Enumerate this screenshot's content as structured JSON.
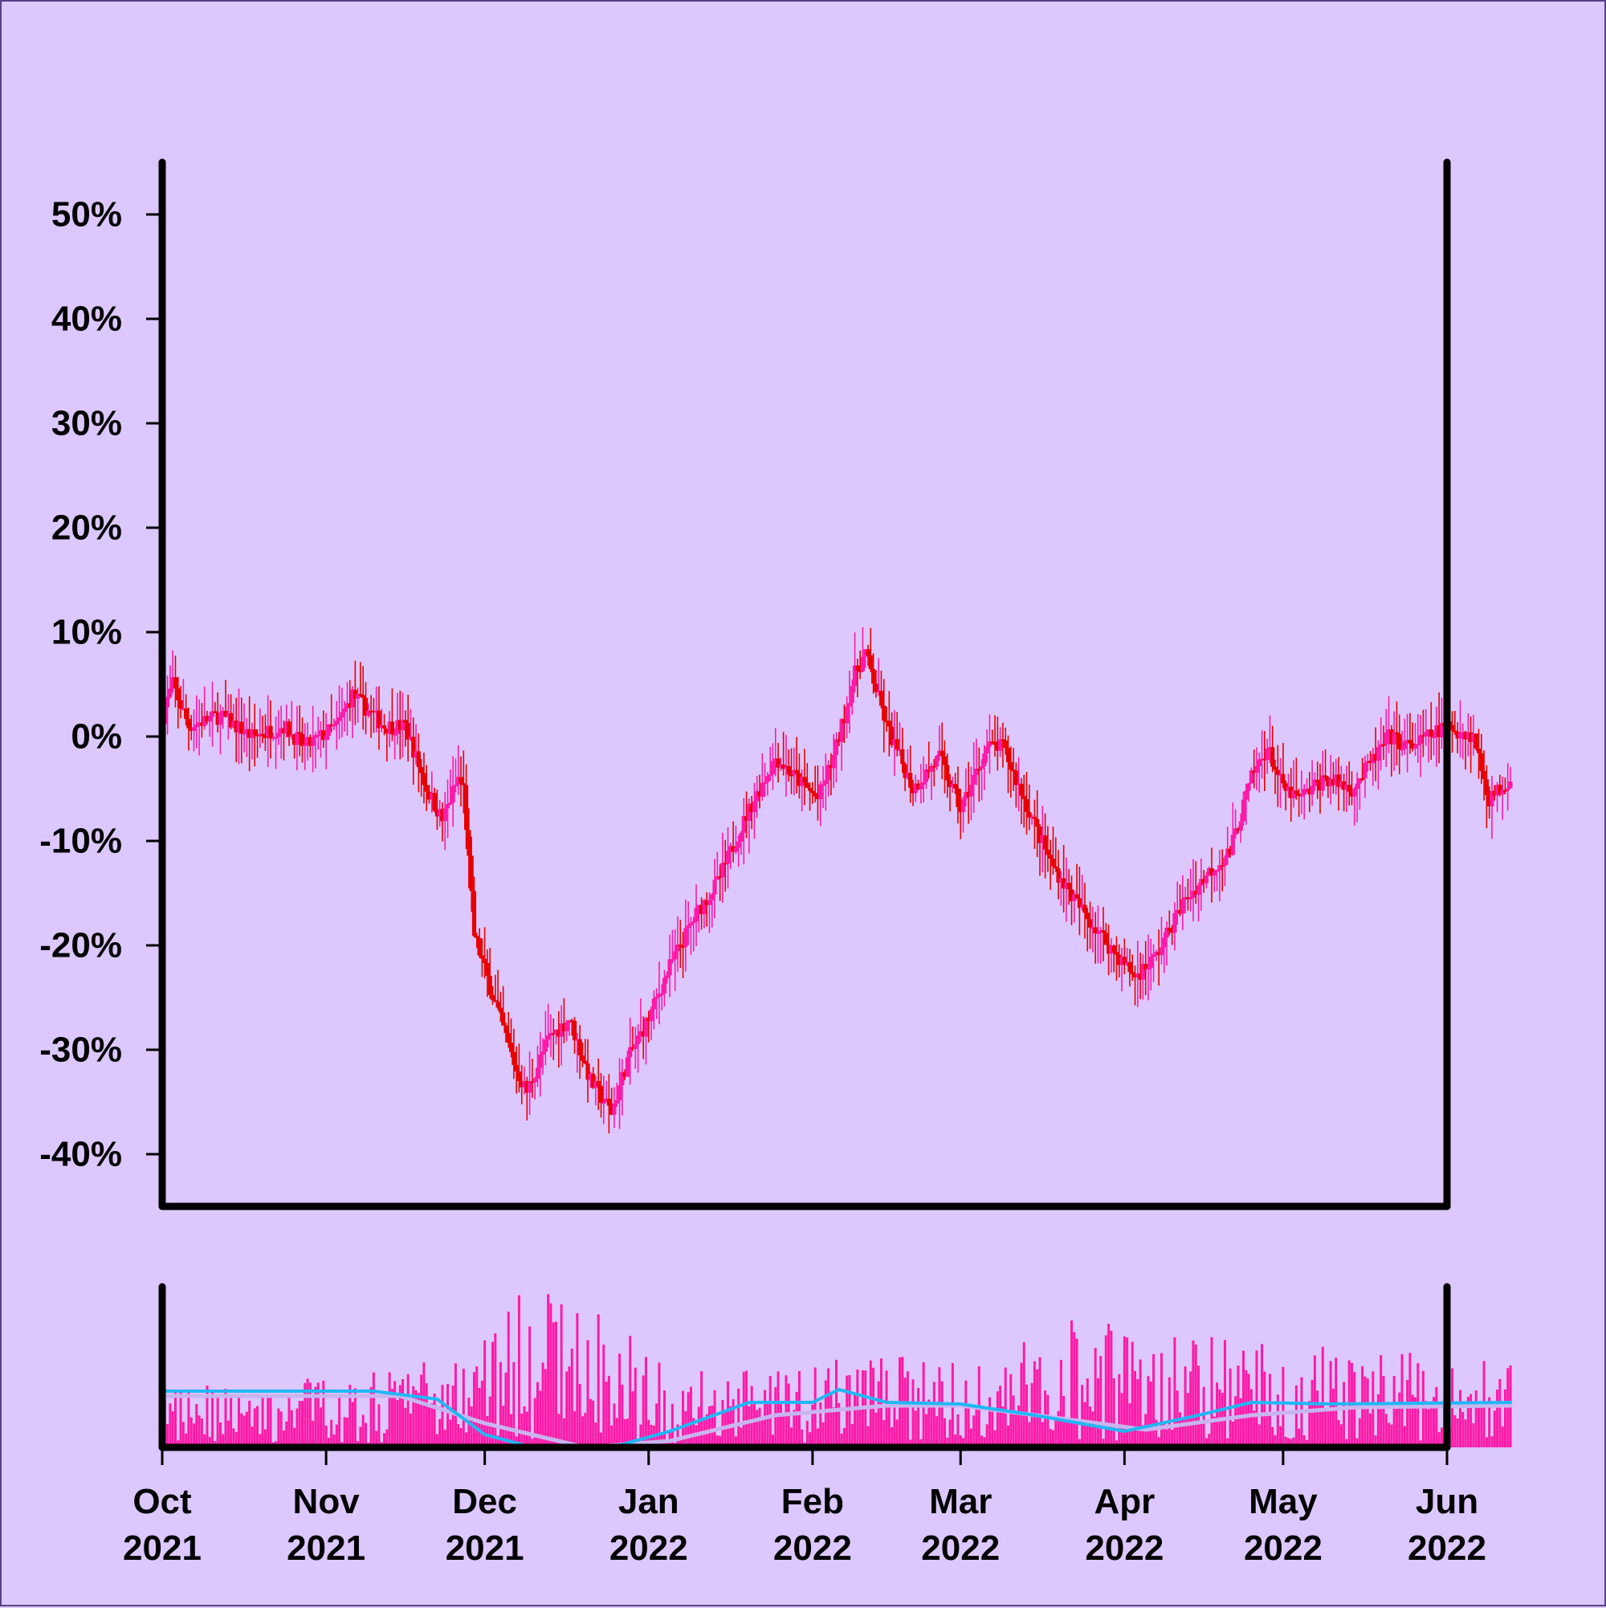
{
  "chart_data": {
    "type": "candlestick",
    "colors": {
      "background": "#dcc8ff",
      "up": "#ff1aa8",
      "down": "#e60000",
      "volume": "#ff1aa8",
      "ma_fast": "#1fb8f5",
      "ma_slow": "#c8b4ee",
      "axis": "#000000"
    },
    "price_axis": {
      "ylim": [
        -45,
        55
      ],
      "ticks": [
        -40,
        -30,
        -20,
        -10,
        0,
        10,
        20,
        30,
        40,
        50
      ],
      "tick_labels": [
        "-40%",
        "-30%",
        "-20%",
        "-10%",
        "0%",
        "10%",
        "20%",
        "30%",
        "40%",
        "50%"
      ]
    },
    "x_axis": {
      "start": "2021-10-01",
      "end": "2022-06-01",
      "ticks": [
        "2021-10-01",
        "2021-11-01",
        "2021-12-01",
        "2022-01-01",
        "2022-02-01",
        "2022-03-01",
        "2022-04-01",
        "2022-05-01",
        "2022-06-01"
      ],
      "tick_labels": [
        [
          "Oct",
          "2021"
        ],
        [
          "Nov",
          "2021"
        ],
        [
          "Dec",
          "2021"
        ],
        [
          "Jan",
          "2022"
        ],
        [
          "Feb",
          "2022"
        ],
        [
          "Mar",
          "2022"
        ],
        [
          "Apr",
          "2022"
        ],
        [
          "May",
          "2022"
        ],
        [
          "Jun",
          "2022"
        ]
      ]
    },
    "price_path": [
      [
        "2021-10-01",
        2
      ],
      [
        "2021-10-03",
        5
      ],
      [
        "2021-10-06",
        1
      ],
      [
        "2021-10-12",
        2
      ],
      [
        "2021-10-18",
        0
      ],
      [
        "2021-10-24",
        1
      ],
      [
        "2021-10-28",
        -1
      ],
      [
        "2021-11-03",
        1
      ],
      [
        "2021-11-06",
        4
      ],
      [
        "2021-11-12",
        1
      ],
      [
        "2021-11-16",
        1
      ],
      [
        "2021-11-20",
        -5
      ],
      [
        "2021-11-23",
        -8
      ],
      [
        "2021-11-26",
        -4
      ],
      [
        "2021-11-27",
        -5
      ],
      [
        "2021-11-29",
        -19
      ],
      [
        "2021-12-02",
        -24
      ],
      [
        "2021-12-07",
        -32
      ],
      [
        "2021-12-09",
        -34
      ],
      [
        "2021-12-13",
        -29
      ],
      [
        "2021-12-17",
        -27
      ],
      [
        "2021-12-21",
        -33
      ],
      [
        "2021-12-25",
        -36
      ],
      [
        "2021-12-28",
        -31
      ],
      [
        "2022-01-01",
        -27
      ],
      [
        "2022-01-05",
        -22
      ],
      [
        "2022-01-10",
        -17
      ],
      [
        "2022-01-14",
        -14
      ],
      [
        "2022-01-20",
        -7
      ],
      [
        "2022-01-25",
        -2
      ],
      [
        "2022-01-29",
        -4
      ],
      [
        "2022-02-02",
        -6
      ],
      [
        "2022-02-05",
        -2
      ],
      [
        "2022-02-09",
        6
      ],
      [
        "2022-02-11",
        8
      ],
      [
        "2022-02-15",
        1
      ],
      [
        "2022-02-20",
        -5
      ],
      [
        "2022-02-25",
        -2
      ],
      [
        "2022-03-01",
        -7
      ],
      [
        "2022-03-06",
        -1
      ],
      [
        "2022-03-09",
        -1
      ],
      [
        "2022-03-13",
        -6
      ],
      [
        "2022-03-18",
        -12
      ],
      [
        "2022-03-23",
        -16
      ],
      [
        "2022-03-29",
        -20
      ],
      [
        "2022-04-03",
        -23
      ],
      [
        "2022-04-07",
        -21
      ],
      [
        "2022-04-12",
        -16
      ],
      [
        "2022-04-17",
        -13
      ],
      [
        "2022-04-21",
        -11
      ],
      [
        "2022-04-25",
        -4
      ],
      [
        "2022-04-28",
        -1
      ],
      [
        "2022-05-01",
        -5
      ],
      [
        "2022-05-04",
        -6
      ],
      [
        "2022-05-09",
        -4
      ],
      [
        "2022-05-14",
        -5
      ],
      [
        "2022-05-17",
        -3
      ],
      [
        "2022-05-21",
        0
      ],
      [
        "2022-05-25",
        -1
      ],
      [
        "2022-06-01",
        1
      ],
      [
        "2022-06-06",
        0
      ],
      [
        "2022-06-09",
        -6
      ],
      [
        "2022-06-13",
        -4
      ]
    ],
    "volume_path": [
      [
        "2021-10-01",
        0.3
      ],
      [
        "2021-11-10",
        0.4
      ],
      [
        "2021-11-25",
        0.5
      ],
      [
        "2021-12-10",
        0.85
      ],
      [
        "2021-12-25",
        0.7
      ],
      [
        "2022-01-05",
        0.4
      ],
      [
        "2022-01-25",
        0.4
      ],
      [
        "2022-02-10",
        0.5
      ],
      [
        "2022-03-01",
        0.45
      ],
      [
        "2022-03-25",
        0.7
      ],
      [
        "2022-04-10",
        0.6
      ],
      [
        "2022-05-01",
        0.55
      ],
      [
        "2022-06-13",
        0.45
      ]
    ],
    "ma_fast_path": [
      [
        "2021-10-01",
        0.35
      ],
      [
        "2021-11-10",
        0.35
      ],
      [
        "2021-11-22",
        0.3
      ],
      [
        "2021-12-01",
        0.08
      ],
      [
        "2021-12-10",
        0.0
      ],
      [
        "2021-12-25",
        0.0
      ],
      [
        "2022-01-05",
        0.1
      ],
      [
        "2022-01-20",
        0.28
      ],
      [
        "2022-02-01",
        0.28
      ],
      [
        "2022-02-06",
        0.36
      ],
      [
        "2022-02-15",
        0.28
      ],
      [
        "2022-03-01",
        0.27
      ],
      [
        "2022-03-15",
        0.2
      ],
      [
        "2022-04-01",
        0.1
      ],
      [
        "2022-04-15",
        0.2
      ],
      [
        "2022-04-25",
        0.28
      ],
      [
        "2022-05-10",
        0.27
      ],
      [
        "2022-06-13",
        0.28
      ]
    ],
    "ma_slow_path": [
      [
        "2021-10-01",
        0.32
      ],
      [
        "2021-11-15",
        0.32
      ],
      [
        "2021-12-01",
        0.15
      ],
      [
        "2021-12-20",
        0.0
      ],
      [
        "2022-01-05",
        0.04
      ],
      [
        "2022-01-25",
        0.2
      ],
      [
        "2022-02-15",
        0.26
      ],
      [
        "2022-03-01",
        0.26
      ],
      [
        "2022-03-20",
        0.18
      ],
      [
        "2022-04-05",
        0.11
      ],
      [
        "2022-04-25",
        0.2
      ],
      [
        "2022-05-15",
        0.25
      ],
      [
        "2022-06-13",
        0.26
      ]
    ]
  }
}
